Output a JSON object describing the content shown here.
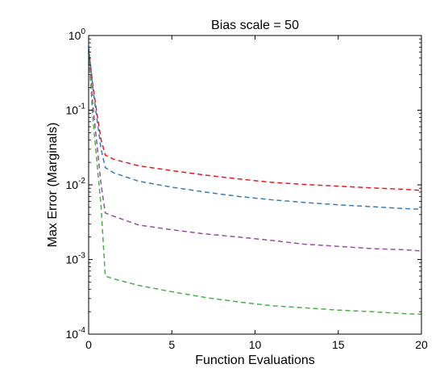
{
  "chart_data": {
    "type": "line",
    "title": "Bias scale = 50",
    "xlabel": "Function Evaluations",
    "ylabel": "Max Error (Marginals)",
    "xlim": [
      0,
      20
    ],
    "ylim": [
      0.0001,
      1
    ],
    "yscale": "log",
    "grid": false,
    "legend": "none",
    "x_ticks": [
      0,
      5,
      10,
      15,
      20
    ],
    "y_ticks": [
      {
        "value": 1,
        "base": "10",
        "exp": "0"
      },
      {
        "value": 0.1,
        "base": "10",
        "exp": "-1"
      },
      {
        "value": 0.01,
        "base": "10",
        "exp": "-2"
      },
      {
        "value": 0.001,
        "base": "10",
        "exp": "-3"
      },
      {
        "value": 0.0001,
        "base": "10",
        "exp": "-4"
      }
    ],
    "series": [
      {
        "color": "#e41a1c",
        "points": [
          [
            0,
            0.65
          ],
          [
            0.25,
            0.22
          ],
          [
            0.5,
            0.09
          ],
          [
            0.75,
            0.04
          ],
          [
            1,
            0.025
          ],
          [
            1.5,
            0.022
          ],
          [
            3,
            0.018
          ],
          [
            5,
            0.0155
          ],
          [
            7,
            0.0135
          ],
          [
            9,
            0.012
          ],
          [
            11,
            0.0108
          ],
          [
            13,
            0.0101
          ],
          [
            15,
            0.0096
          ],
          [
            17,
            0.0091
          ],
          [
            19,
            0.0087
          ],
          [
            20,
            0.0084
          ]
        ]
      },
      {
        "color": "#377eb8",
        "points": [
          [
            0,
            0.72
          ],
          [
            0.25,
            0.2
          ],
          [
            0.5,
            0.075
          ],
          [
            0.75,
            0.03
          ],
          [
            1,
            0.017
          ],
          [
            1.5,
            0.0145
          ],
          [
            3,
            0.0112
          ],
          [
            5,
            0.0093
          ],
          [
            7,
            0.008
          ],
          [
            9,
            0.007
          ],
          [
            11,
            0.0063
          ],
          [
            13,
            0.0058
          ],
          [
            15,
            0.0054
          ],
          [
            17,
            0.0051
          ],
          [
            19,
            0.0048
          ],
          [
            20,
            0.0047
          ]
        ]
      },
      {
        "color": "#984ea3",
        "points": [
          [
            0,
            0.62
          ],
          [
            0.25,
            0.12
          ],
          [
            0.5,
            0.035
          ],
          [
            0.75,
            0.01
          ],
          [
            1,
            0.0042
          ],
          [
            1.5,
            0.0038
          ],
          [
            3,
            0.0029
          ],
          [
            5,
            0.0025
          ],
          [
            7,
            0.0022
          ],
          [
            9,
            0.002
          ],
          [
            11,
            0.0018
          ],
          [
            13,
            0.0016
          ],
          [
            15,
            0.0015
          ],
          [
            17,
            0.0014
          ],
          [
            19,
            0.00135
          ],
          [
            20,
            0.0013
          ]
        ]
      },
      {
        "color": "#4daf4a",
        "points": [
          [
            0,
            0.6
          ],
          [
            0.25,
            0.08
          ],
          [
            0.5,
            0.02
          ],
          [
            0.75,
            0.005
          ],
          [
            1,
            0.0006
          ],
          [
            1.5,
            0.00055
          ],
          [
            3,
            0.00045
          ],
          [
            5,
            0.00037
          ],
          [
            7,
            0.00031
          ],
          [
            9,
            0.00027
          ],
          [
            11,
            0.00024
          ],
          [
            13,
            0.000225
          ],
          [
            15,
            0.00021
          ],
          [
            17,
            0.0002
          ],
          [
            19,
            0.000188
          ],
          [
            20,
            0.000185
          ]
        ]
      }
    ]
  }
}
